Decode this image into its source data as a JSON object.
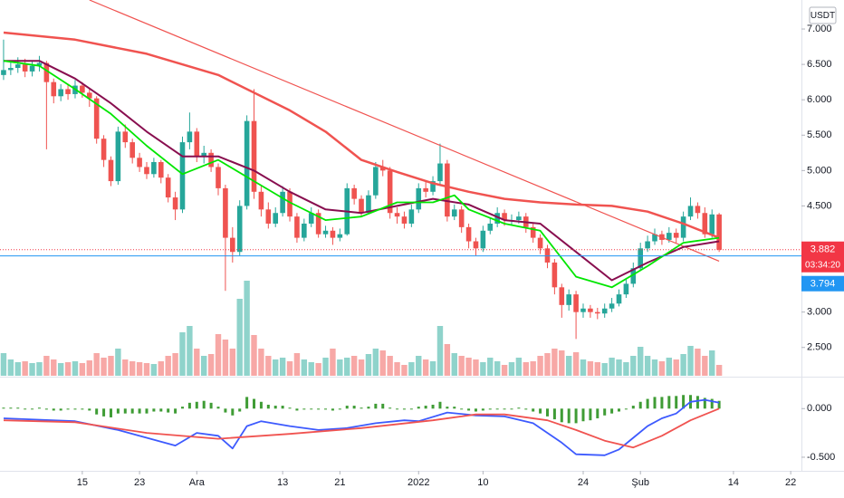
{
  "currency": "USDT",
  "chart_data": [
    {
      "type": "candlestick",
      "up_color": "#26a69a",
      "down_color": "#ef5350",
      "xlim": [
        -0.5,
        111.5
      ],
      "xticks": [
        {
          "value": 11,
          "label": "15"
        },
        {
          "value": 19,
          "label": "23"
        },
        {
          "value": 27,
          "label": "Ara"
        },
        {
          "value": 39,
          "label": "13"
        },
        {
          "value": 47,
          "label": "21"
        },
        {
          "value": 58,
          "label": "2022"
        },
        {
          "value": 67,
          "label": "10"
        },
        {
          "value": 81,
          "label": "24"
        },
        {
          "value": 89,
          "label": "Şub"
        },
        {
          "value": 102,
          "label": "14"
        },
        {
          "value": 110,
          "label": "22"
        }
      ],
      "ylim": [
        2.1,
        7.41
      ],
      "yticks": [
        {
          "value": 7,
          "label": "7.000"
        },
        {
          "value": 6.5,
          "label": "6.500"
        },
        {
          "value": 6,
          "label": "6.000"
        },
        {
          "value": 5.5,
          "label": "5.500"
        },
        {
          "value": 5,
          "label": "5.000"
        },
        {
          "value": 4.5,
          "label": "4.500"
        },
        {
          "value": 3,
          "label": "3.000"
        },
        {
          "value": 2.5,
          "label": "2.500"
        }
      ],
      "open": [
        6.35,
        6.42,
        6.45,
        6.5,
        6.4,
        6.48,
        6.52,
        6.25,
        6.05,
        6.15,
        6.08,
        6.2,
        6.1,
        6.02,
        5.45,
        5.15,
        4.85,
        5.55,
        5.4,
        5.18,
        5.05,
        4.95,
        5.12,
        4.9,
        4.62,
        4.45,
        5.4,
        5.55,
        5.2,
        5.25,
        5.05,
        4.75,
        4.05,
        3.85,
        4.5,
        5.7,
        4.7,
        4.45,
        4.25,
        4.4,
        4.7,
        4.35,
        4.05,
        4.25,
        4.4,
        4.1,
        4.15,
        4.05,
        4.1,
        4.75,
        4.6,
        4.4,
        4.65,
        5.05,
        5.0,
        4.4,
        4.35,
        4.25,
        4.45,
        4.75,
        4.7,
        4.85,
        5.1,
        4.35,
        4.45,
        4.2,
        4.0,
        3.9,
        4.15,
        4.25,
        4.4,
        4.3,
        4.3,
        4.35,
        4.2,
        4.05,
        3.9,
        3.7,
        3.35,
        3.1,
        3.25,
        3.0,
        3.05,
        3.0,
        2.98,
        3.05,
        3.12,
        3.25,
        3.4,
        3.62,
        3.9,
        4.0,
        4.1,
        4.02,
        4.12,
        4.05,
        4.35,
        4.5,
        4.4,
        4.1,
        4.38
      ],
      "high": [
        6.85,
        6.55,
        6.6,
        6.58,
        6.56,
        6.62,
        6.55,
        6.3,
        6.22,
        6.22,
        6.28,
        6.25,
        6.15,
        6.05,
        5.5,
        5.2,
        5.62,
        5.65,
        5.45,
        5.25,
        5.12,
        5.18,
        5.15,
        4.95,
        4.7,
        5.48,
        5.82,
        5.6,
        5.35,
        5.3,
        5.1,
        4.8,
        4.2,
        4.58,
        5.78,
        6.15,
        4.8,
        4.55,
        4.48,
        4.78,
        4.75,
        4.4,
        4.32,
        4.48,
        4.45,
        4.22,
        4.2,
        4.18,
        4.82,
        4.8,
        4.65,
        4.72,
        5.12,
        5.15,
        5.05,
        4.48,
        4.42,
        4.52,
        4.82,
        4.85,
        4.92,
        5.38,
        5.15,
        4.52,
        4.5,
        4.25,
        4.05,
        4.22,
        4.32,
        4.48,
        4.45,
        4.38,
        4.42,
        4.4,
        4.25,
        4.1,
        3.95,
        3.75,
        3.4,
        3.32,
        3.3,
        3.12,
        3.1,
        3.06,
        3.12,
        3.2,
        3.32,
        3.48,
        3.7,
        3.98,
        4.08,
        4.18,
        4.15,
        4.2,
        4.18,
        4.42,
        4.62,
        4.55,
        4.48,
        4.45,
        4.4
      ],
      "low": [
        6.28,
        6.35,
        6.38,
        6.32,
        6.33,
        6.4,
        5.3,
        5.95,
        5.98,
        6.0,
        6.02,
        6.03,
        5.9,
        5.38,
        5.05,
        4.78,
        4.8,
        5.32,
        5.1,
        4.98,
        4.88,
        4.9,
        4.82,
        4.55,
        4.3,
        4.4,
        5.3,
        5.12,
        5.1,
        4.98,
        4.65,
        3.3,
        3.7,
        3.8,
        4.45,
        4.6,
        4.35,
        4.18,
        4.2,
        4.35,
        4.28,
        3.98,
        4.0,
        4.2,
        4.05,
        4.05,
        3.95,
        4.0,
        4.08,
        4.52,
        4.35,
        4.38,
        4.6,
        4.92,
        4.32,
        4.25,
        4.18,
        4.2,
        4.4,
        4.62,
        4.65,
        4.8,
        4.28,
        4.3,
        4.12,
        3.9,
        3.8,
        3.85,
        4.1,
        4.2,
        4.22,
        4.22,
        4.25,
        4.12,
        3.98,
        3.82,
        3.62,
        3.25,
        2.92,
        3.02,
        2.62,
        2.92,
        2.92,
        2.9,
        2.92,
        3.0,
        3.08,
        3.2,
        3.35,
        3.58,
        3.85,
        3.95,
        3.95,
        3.98,
        3.98,
        4.0,
        4.3,
        4.32,
        4.05,
        4.05,
        3.85
      ],
      "close": [
        6.42,
        6.45,
        6.5,
        6.4,
        6.48,
        6.52,
        6.25,
        6.05,
        6.15,
        6.08,
        6.2,
        6.1,
        6.02,
        5.45,
        5.15,
        4.85,
        5.55,
        5.4,
        5.18,
        5.05,
        4.95,
        5.12,
        4.9,
        4.62,
        4.45,
        5.4,
        5.55,
        5.2,
        5.25,
        5.05,
        4.75,
        4.05,
        3.85,
        4.5,
        5.7,
        4.7,
        4.45,
        4.25,
        4.4,
        4.7,
        4.35,
        4.05,
        4.25,
        4.4,
        4.1,
        4.15,
        4.05,
        4.1,
        4.75,
        4.6,
        4.4,
        4.65,
        5.05,
        5.0,
        4.4,
        4.35,
        4.25,
        4.45,
        4.75,
        4.7,
        4.85,
        5.1,
        4.35,
        4.45,
        4.2,
        4.0,
        3.9,
        4.15,
        4.25,
        4.4,
        4.3,
        4.3,
        4.35,
        4.2,
        4.05,
        3.9,
        3.7,
        3.35,
        3.1,
        3.25,
        3.0,
        3.05,
        3.0,
        2.98,
        3.05,
        3.12,
        3.25,
        3.4,
        3.62,
        3.9,
        4.0,
        4.1,
        4.02,
        4.12,
        4.05,
        4.35,
        4.5,
        4.4,
        4.1,
        4.38,
        3.88
      ],
      "series": [
        {
          "color": "#f05350",
          "width": 2.5,
          "x": [
            0,
            10,
            20,
            30,
            40,
            45,
            50,
            55,
            60,
            65,
            70,
            75,
            80,
            85,
            90,
            95,
            100
          ],
          "values": [
            6.95,
            6.85,
            6.65,
            6.35,
            5.85,
            5.55,
            5.15,
            4.98,
            4.82,
            4.7,
            4.6,
            4.55,
            4.52,
            4.5,
            4.42,
            4.25,
            4.05
          ]
        },
        {
          "color": "#f05350",
          "width": 1.2,
          "x": [
            12,
            100
          ],
          "values": [
            7.41,
            3.72
          ]
        },
        {
          "color": "#880e4f",
          "width": 2,
          "x": [
            0,
            5,
            10,
            15,
            20,
            25,
            30,
            35,
            40,
            45,
            50,
            55,
            60,
            65,
            70,
            75,
            80,
            85,
            90,
            95,
            100
          ],
          "values": [
            6.55,
            6.55,
            6.3,
            5.95,
            5.55,
            5.2,
            5.2,
            5.0,
            4.7,
            4.45,
            4.4,
            4.5,
            4.6,
            4.52,
            4.3,
            4.25,
            3.85,
            3.45,
            3.7,
            3.92,
            4.0
          ]
        },
        {
          "color": "#00e600",
          "width": 1.8,
          "x": [
            0,
            5,
            10,
            15,
            20,
            25,
            30,
            35,
            40,
            45,
            50,
            55,
            60,
            63,
            65,
            70,
            75,
            80,
            85,
            90,
            95,
            100
          ],
          "values": [
            6.55,
            6.48,
            6.15,
            5.8,
            5.35,
            4.95,
            5.15,
            4.85,
            4.55,
            4.3,
            4.35,
            4.55,
            4.55,
            4.65,
            4.45,
            4.25,
            4.15,
            3.5,
            3.35,
            3.65,
            3.98,
            4.05
          ]
        }
      ],
      "price_lines": [
        {
          "value": 3.882,
          "color": "#f23645",
          "dotted": true,
          "countdown": "03:34:20"
        },
        {
          "value": 3.794,
          "color": "#2196f3",
          "dotted": false
        }
      ]
    },
    {
      "type": "bar",
      "up_color": "#8fd3cb",
      "down_color": "#f7a8a6",
      "ylim": [
        0,
        130
      ],
      "values": [
        25,
        18,
        15,
        16,
        14,
        15,
        22,
        18,
        14,
        15,
        16,
        14,
        17,
        25,
        20,
        22,
        30,
        18,
        16,
        15,
        14,
        13,
        16,
        22,
        25,
        48,
        55,
        30,
        22,
        24,
        46,
        40,
        30,
        85,
        105,
        45,
        30,
        22,
        18,
        20,
        16,
        25,
        18,
        15,
        14,
        20,
        30,
        18,
        20,
        22,
        18,
        24,
        30,
        28,
        22,
        15,
        12,
        15,
        22,
        18,
        16,
        55,
        35,
        25,
        22,
        20,
        18,
        15,
        20,
        16,
        12,
        15,
        20,
        15,
        16,
        22,
        25,
        30,
        28,
        22,
        26,
        18,
        16,
        15,
        14,
        20,
        18,
        15,
        22,
        32,
        22,
        18,
        16,
        20,
        18,
        24,
        33,
        30,
        22,
        28,
        12
      ]
    },
    {
      "type": "line",
      "ylim": [
        -0.64,
        0.31
      ],
      "yticks": [
        {
          "value": 0,
          "label": "0.000"
        },
        {
          "value": -0.5,
          "label": "-0.500"
        }
      ],
      "histogram": {
        "color": "#3f9c35",
        "values": [
          0.01,
          0.01,
          0.01,
          0.0,
          0.0,
          0.01,
          -0.01,
          -0.02,
          -0.02,
          -0.01,
          -0.01,
          -0.01,
          -0.02,
          -0.06,
          -0.08,
          -0.09,
          -0.05,
          -0.05,
          -0.05,
          -0.05,
          -0.05,
          -0.03,
          -0.03,
          -0.04,
          -0.05,
          0.02,
          0.06,
          0.07,
          0.08,
          0.06,
          0.02,
          -0.04,
          -0.07,
          -0.03,
          0.12,
          0.1,
          0.07,
          0.04,
          0.03,
          0.03,
          0.01,
          -0.02,
          -0.01,
          0.0,
          -0.01,
          -0.01,
          -0.02,
          -0.01,
          0.03,
          0.03,
          0.01,
          0.02,
          0.05,
          0.05,
          0.01,
          0.0,
          -0.01,
          0.0,
          0.02,
          0.03,
          0.04,
          0.07,
          0.02,
          0.02,
          0.0,
          -0.02,
          -0.03,
          -0.02,
          -0.01,
          0.0,
          0.0,
          0.0,
          0.01,
          -0.01,
          -0.03,
          -0.05,
          -0.08,
          -0.11,
          -0.14,
          -0.15,
          -0.15,
          -0.13,
          -0.12,
          -0.1,
          -0.07,
          -0.05,
          -0.03,
          0.0,
          0.03,
          0.07,
          0.1,
          0.12,
          0.12,
          0.13,
          0.13,
          0.14,
          0.14,
          0.13,
          0.11,
          0.1,
          0.08
        ]
      },
      "series": [
        {
          "color": "#3d5afe",
          "width": 1.8,
          "x": [
            0,
            10,
            16,
            24,
            27,
            30,
            32,
            34,
            36,
            40,
            44,
            48,
            52,
            56,
            58,
            62,
            66,
            70,
            74,
            78,
            80,
            84,
            86,
            88,
            90,
            92,
            94,
            96,
            98,
            100
          ],
          "values": [
            -0.1,
            -0.13,
            -0.22,
            -0.38,
            -0.25,
            -0.28,
            -0.41,
            -0.18,
            -0.13,
            -0.18,
            -0.22,
            -0.2,
            -0.15,
            -0.12,
            -0.13,
            -0.04,
            -0.07,
            -0.08,
            -0.15,
            -0.35,
            -0.47,
            -0.48,
            -0.42,
            -0.3,
            -0.18,
            -0.1,
            -0.05,
            0.07,
            0.09,
            0.06
          ]
        },
        {
          "color": "#f05350",
          "width": 1.8,
          "x": [
            0,
            10,
            20,
            30,
            40,
            50,
            60,
            66,
            70,
            76,
            80,
            84,
            88,
            92,
            96,
            100
          ],
          "values": [
            -0.12,
            -0.14,
            -0.25,
            -0.31,
            -0.26,
            -0.2,
            -0.12,
            -0.06,
            -0.06,
            -0.12,
            -0.22,
            -0.33,
            -0.4,
            -0.28,
            -0.12,
            0.0
          ]
        }
      ]
    }
  ]
}
